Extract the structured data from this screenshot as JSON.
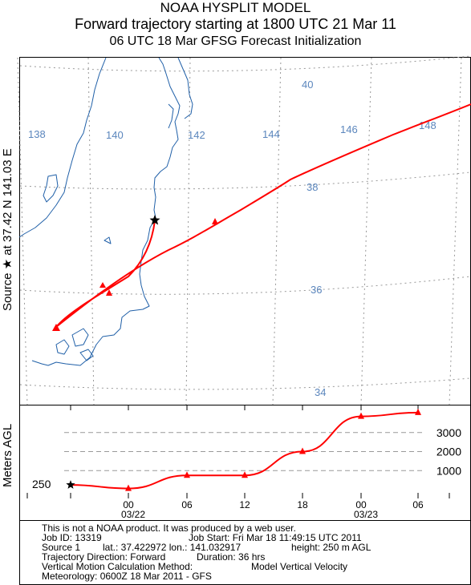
{
  "titles": {
    "line1": "NOAA HYSPLIT MODEL",
    "line2": "Forward trajectory starting at 1800 UTC 21 Mar 11",
    "line3": "06 UTC 18 Mar    GFSG  Forecast Initialization"
  },
  "map": {
    "source_label": "Source ★ at  37.42 N  141.03 E",
    "lon_labels": [
      "138",
      "140",
      "142",
      "144",
      "146",
      "148"
    ],
    "lat_labels": [
      "40",
      "38",
      "36",
      "34"
    ],
    "trajectory_color": "#ff0000",
    "source_marker": "star-icon"
  },
  "chart_data": {
    "type": "line",
    "ylabel": "Meters AGL",
    "y_ticks": [
      1000,
      2000,
      3000
    ],
    "source_height_label": "250",
    "x_ticks": [
      "00",
      "06",
      "12",
      "18",
      "00",
      "06"
    ],
    "x_dates": [
      "03/22",
      "03/23"
    ],
    "series": [
      {
        "x": [
          "18 UTC 03/21",
          "00 UTC 03/22",
          "06 UTC 03/22",
          "12 UTC 03/22",
          "18 UTC 03/22",
          "00 UTC 03/23",
          "06 UTC 03/23"
        ],
        "values": [
          250,
          60,
          750,
          750,
          2000,
          3850,
          4050
        ]
      }
    ],
    "color": "#ff0000"
  },
  "info": {
    "line1": "This is not a NOAA product. It was produced by a web user.",
    "line2a": "Job ID: 13319",
    "line2b": "Job Start: Fri Mar 18 11:49:15 UTC 2011",
    "line3a": "Source 1",
    "line3b": "lat.: 37.422972   lon.: 141.032917",
    "line3c": "height: 250 m AGL",
    "line4a": "Trajectory Direction: Forward",
    "line4b": "Duration: 36 hrs",
    "line5a": "Vertical Motion Calculation Method:",
    "line5b": "Model Vertical Velocity",
    "line6": "Meteorology: 0600Z 18 Mar 2011 - GFS"
  }
}
